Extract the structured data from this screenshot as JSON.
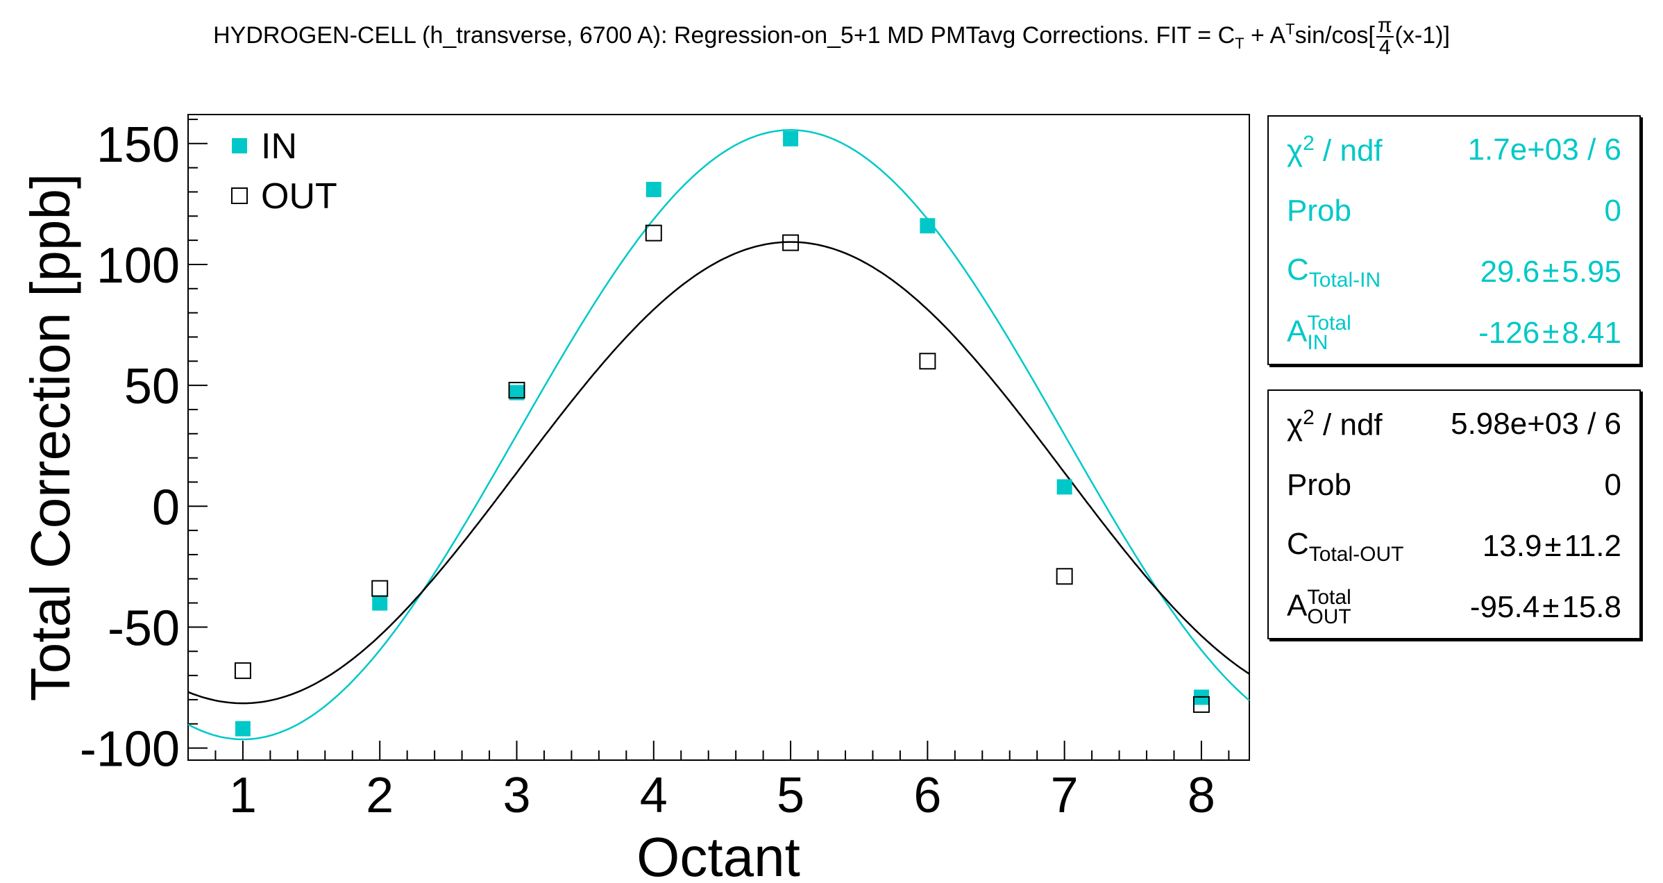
{
  "title": {
    "prefix": "HYDROGEN-CELL (h_transverse, 6700 A): Regression-on_5+1 MD PMTavg Corrections. FIT = C",
    "sub_t": "T",
    "mid": " + A",
    "sup_t": "T",
    "after": "sin/cos[",
    "frac_num": "π",
    "frac_den": "4",
    "suffix": "(x-1)]"
  },
  "colors": {
    "in": "#00c8c8",
    "out": "#000000",
    "axis": "#000000"
  },
  "chart_data": {
    "type": "scatter",
    "xlabel": "Octant",
    "ylabel": "Total Correction [ppb]",
    "xlim": [
      0.6,
      8.35
    ],
    "ylim": [
      -105,
      162
    ],
    "x_ticks": [
      1,
      2,
      3,
      4,
      5,
      6,
      7,
      8
    ],
    "y_ticks": [
      -100,
      -50,
      0,
      50,
      100,
      150
    ],
    "legend_position": "top-left",
    "series": [
      {
        "name": "IN",
        "marker": "filled-square",
        "x": [
          1,
          2,
          3,
          4,
          5,
          6,
          7,
          8
        ],
        "values": [
          -92,
          -40,
          47,
          131,
          152,
          116,
          8,
          -79
        ],
        "fit": {
          "C": 29.6,
          "A": -126
        }
      },
      {
        "name": "OUT",
        "marker": "open-square",
        "x": [
          1,
          2,
          3,
          4,
          5,
          6,
          7,
          8
        ],
        "values": [
          -68,
          -34,
          48,
          113,
          109,
          60,
          -29,
          -82
        ],
        "fit": {
          "C": 13.9,
          "A": -95.4
        }
      }
    ]
  },
  "stats_in": {
    "chi2_label_base": "χ",
    "chi2_label_sup": "2",
    "chi2_label_rest": " / ndf",
    "chi2_value": "1.7e+03 / 6",
    "prob_label": "Prob",
    "prob_value": "0",
    "c_label": "C",
    "c_sub": "Total-IN",
    "c_value": "29.6",
    "c_error": "5.95",
    "a_label": "A",
    "a_sup": "Total",
    "a_sub": "IN",
    "a_value": "-126",
    "a_error": "8.41",
    "pm": "±"
  },
  "stats_out": {
    "chi2_label_base": "χ",
    "chi2_label_sup": "2",
    "chi2_label_rest": " / ndf",
    "chi2_value": "5.98e+03 / 6",
    "prob_label": "Prob",
    "prob_value": "0",
    "c_label": "C",
    "c_sub": "Total-OUT",
    "c_value": "13.9",
    "c_error": "11.2",
    "a_label": "A",
    "a_sup": "Total",
    "a_sub": "OUT",
    "a_value": "-95.4",
    "a_error": "15.8",
    "pm": "±"
  }
}
